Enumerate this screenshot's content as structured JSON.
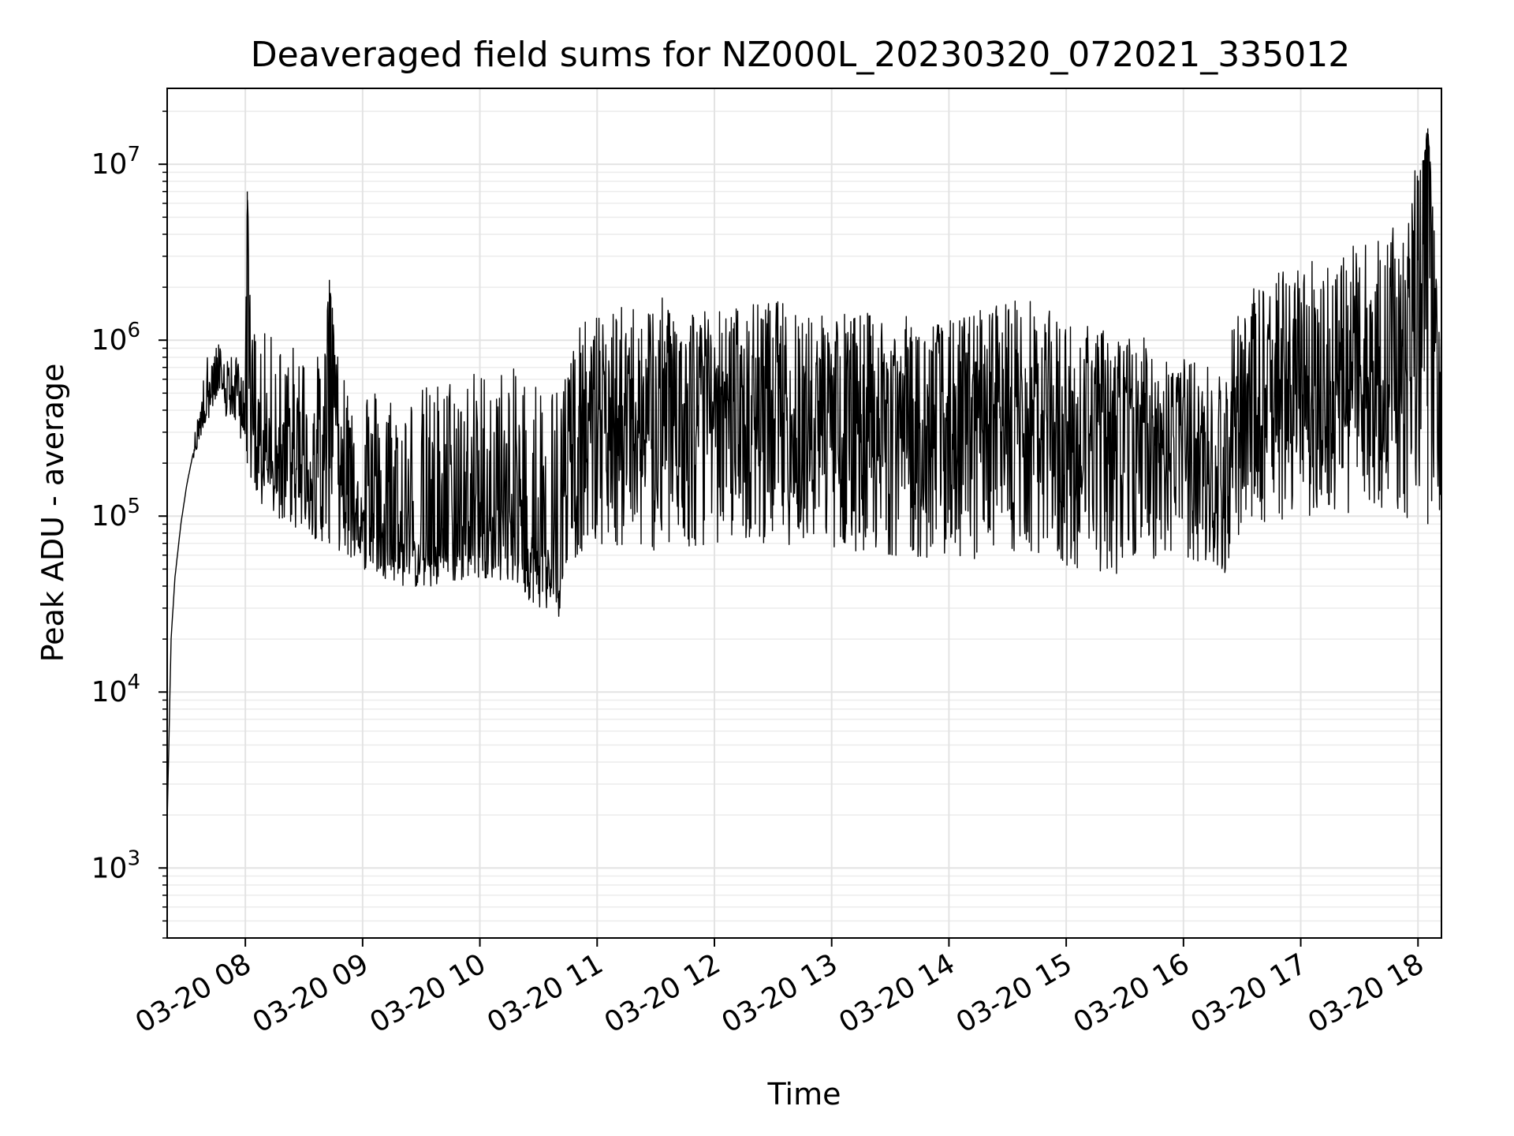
{
  "chart_data": {
    "type": "line",
    "title": "Deaveraged field sums for NZ000L_20230320_072021_335012",
    "xlabel": "Time",
    "ylabel": "Peak ADU - average",
    "yscale": "log",
    "ylim": [
      400,
      27000000
    ],
    "xlim": [
      "03-20 07:20",
      "03-20 18:12"
    ],
    "grid": "major and minor",
    "line_color": "#000000",
    "x_ticks": [
      "03-20 08",
      "03-20 09",
      "03-20 10",
      "03-20 11",
      "03-20 12",
      "03-20 13",
      "03-20 14",
      "03-20 15",
      "03-20 16",
      "03-20 17",
      "03-20 18"
    ],
    "y_ticks": [
      {
        "value": 1000,
        "base": "10",
        "exp": "3"
      },
      {
        "value": 10000,
        "base": "10",
        "exp": "4"
      },
      {
        "value": 100000,
        "base": "10",
        "exp": "5"
      },
      {
        "value": 1000000,
        "base": "10",
        "exp": "6"
      },
      {
        "value": 10000000,
        "base": "10",
        "exp": "7"
      }
    ],
    "series": [
      {
        "x": [
          "03-20 07:20",
          "03-20 07:22",
          "03-20 07:24",
          "03-20 07:27",
          "03-20 07:30",
          "03-20 07:33",
          "03-20 07:36",
          "03-20 07:40",
          "03-20 07:45",
          "03-20 07:50",
          "03-20 07:55",
          "03-20 08:00",
          "03-20 08:01",
          "03-20 08:03",
          "03-20 08:05",
          "03-20 08:10",
          "03-20 08:20",
          "03-20 08:30",
          "03-20 08:40",
          "03-20 08:43",
          "03-20 08:50",
          "03-20 09:00",
          "03-20 09:10",
          "03-20 09:20",
          "03-20 09:30",
          "03-20 09:45",
          "03-20 10:00",
          "03-20 10:15",
          "03-20 10:30",
          "03-20 10:40",
          "03-20 10:50",
          "03-20 11:00",
          "03-20 11:15",
          "03-20 11:40",
          "03-20 12:00",
          "03-20 12:30",
          "03-20 13:00",
          "03-20 13:30",
          "03-20 14:00",
          "03-20 14:35",
          "03-20 15:00",
          "03-20 15:15",
          "03-20 15:30",
          "03-20 15:45",
          "03-20 16:00",
          "03-20 16:20",
          "03-20 16:30",
          "03-20 16:50",
          "03-20 17:00",
          "03-20 17:30",
          "03-20 17:50",
          "03-20 18:05",
          "03-20 18:10"
        ],
        "y": [
          1800,
          20000,
          45000,
          90000,
          150000,
          220000,
          300000,
          450000,
          600000,
          550000,
          500000,
          450000,
          7000000,
          350000,
          300000,
          250000,
          220000,
          200000,
          180000,
          2200000,
          150000,
          120000,
          100000,
          80000,
          70000,
          90000,
          110000,
          100000,
          80000,
          60000,
          350000,
          400000,
          400000,
          350000,
          500000,
          550000,
          450000,
          400000,
          350000,
          450000,
          350000,
          300000,
          320000,
          350000,
          300000,
          200000,
          450000,
          500000,
          550000,
          600000,
          650000,
          16000000,
          600000
        ],
        "low": [
          1800,
          20000,
          45000,
          90000,
          150000,
          200000,
          250000,
          350000,
          400000,
          350000,
          300000,
          250000,
          200000,
          150000,
          120000,
          100000,
          90000,
          80000,
          70000,
          70000,
          60000,
          50000,
          45000,
          40000,
          38000,
          40000,
          45000,
          42000,
          30000,
          26000,
          60000,
          70000,
          65000,
          60000,
          70000,
          70000,
          65000,
          60000,
          55000,
          60000,
          50000,
          45000,
          48000,
          55000,
          60000,
          40000,
          90000,
          90000,
          100000,
          100000,
          100000,
          90000,
          90000
        ],
        "high": [
          1800,
          20000,
          45000,
          90000,
          150000,
          250000,
          400000,
          800000,
          1000000,
          900000,
          800000,
          800000,
          7000000,
          1300000,
          1200000,
          1100000,
          1000000,
          900000,
          800000,
          2200000,
          700000,
          600000,
          550000,
          500000,
          550000,
          650000,
          700000,
          700000,
          650000,
          600000,
          1200000,
          1400000,
          1600000,
          1800000,
          1500000,
          1700000,
          1500000,
          1400000,
          1300000,
          1900000,
          1300000,
          1200000,
          1100000,
          1000000,
          800000,
          700000,
          2000000,
          2500000,
          3000000,
          3500000,
          4500000,
          16000000,
          3000000
        ]
      }
    ]
  }
}
